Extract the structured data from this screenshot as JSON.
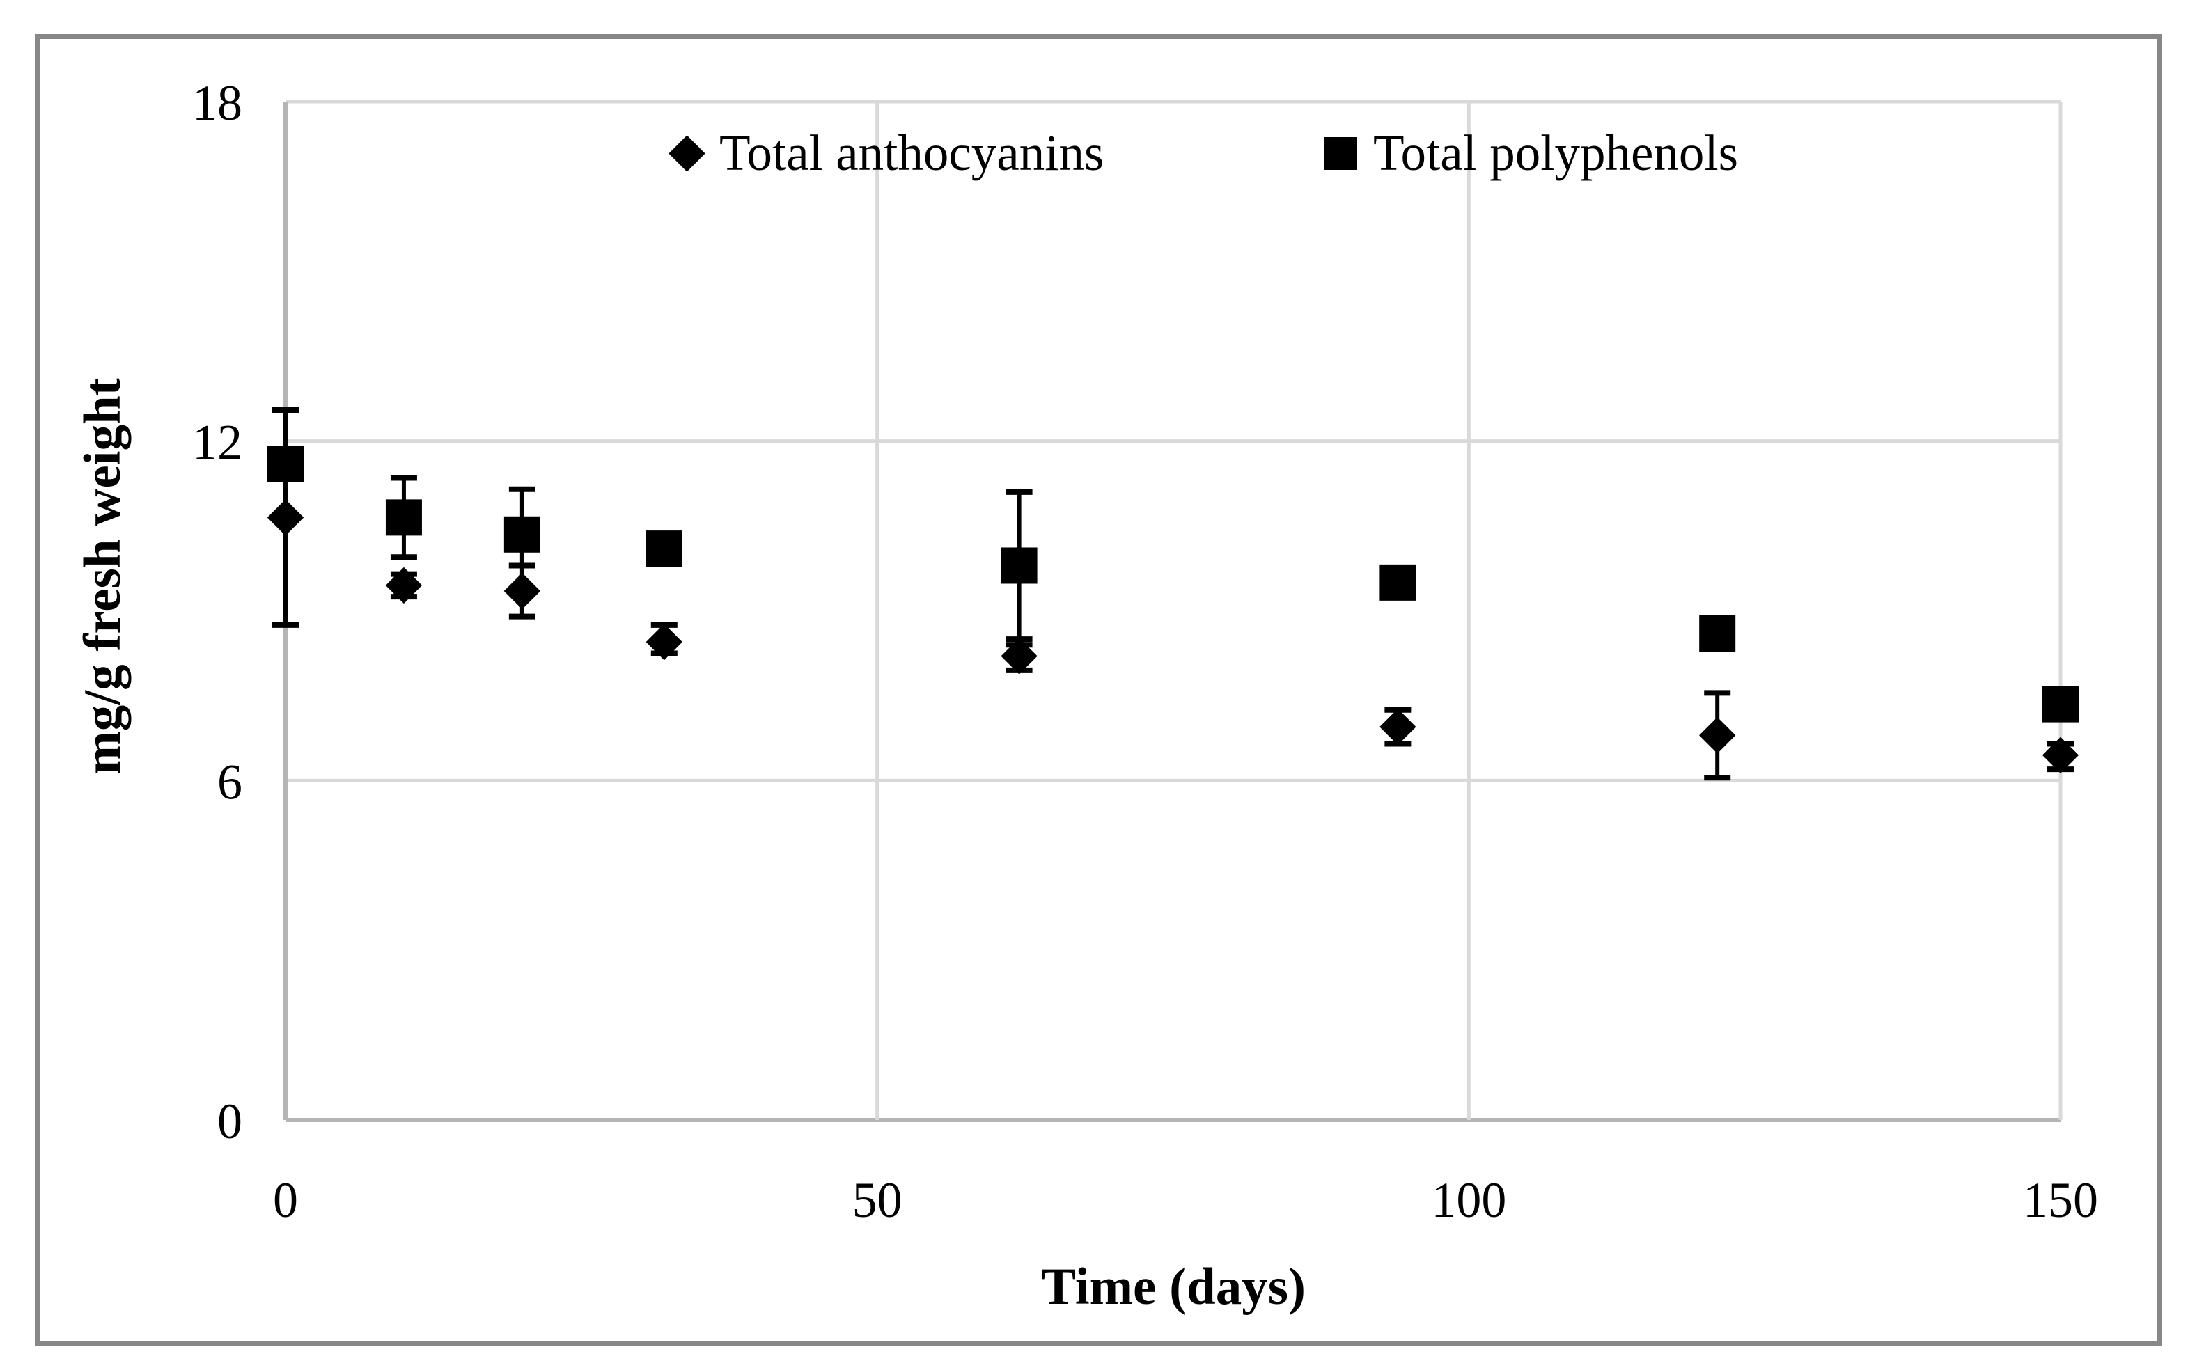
{
  "chart_data": {
    "type": "scatter",
    "title": "",
    "xlabel": "Time (days)",
    "ylabel": "mg/g fresh weight",
    "xlim": [
      0,
      150
    ],
    "ylim": [
      0,
      18
    ],
    "x_ticks": [
      0,
      50,
      100,
      150
    ],
    "y_ticks": [
      0,
      6,
      12,
      18
    ],
    "grid": true,
    "legend_position": "top-center-inside",
    "series": [
      {
        "name": "Total anthocyanins",
        "marker": "diamond",
        "x": [
          0,
          10,
          20,
          32,
          62,
          94,
          121,
          150
        ],
        "y": [
          10.65,
          9.45,
          9.35,
          8.45,
          8.2,
          6.95,
          6.8,
          6.45
        ],
        "err_low": [
          8.75,
          9.25,
          8.9,
          8.25,
          7.95,
          6.65,
          6.05,
          6.2
        ],
        "err_high": [
          12.55,
          9.65,
          9.8,
          8.75,
          8.5,
          7.25,
          7.55,
          6.65
        ]
      },
      {
        "name": "Total polyphenols",
        "marker": "square",
        "x": [
          0,
          10,
          20,
          32,
          62,
          94,
          121,
          150
        ],
        "y": [
          11.6,
          10.65,
          10.35,
          10.1,
          9.8,
          9.5,
          8.6,
          7.35
        ],
        "err_low": [
          10.6,
          9.95,
          9.8,
          10.1,
          8.4,
          9.5,
          8.6,
          7.35
        ],
        "err_high": [
          12.55,
          11.35,
          11.15,
          10.1,
          11.1,
          9.5,
          8.6,
          7.35
        ]
      }
    ],
    "colors": {
      "marker": "#000000",
      "text": "#000000",
      "gridline": "#d9d9d9",
      "axis_line": "#b5b5b5",
      "frame": "#878787",
      "background": "#ffffff"
    }
  }
}
